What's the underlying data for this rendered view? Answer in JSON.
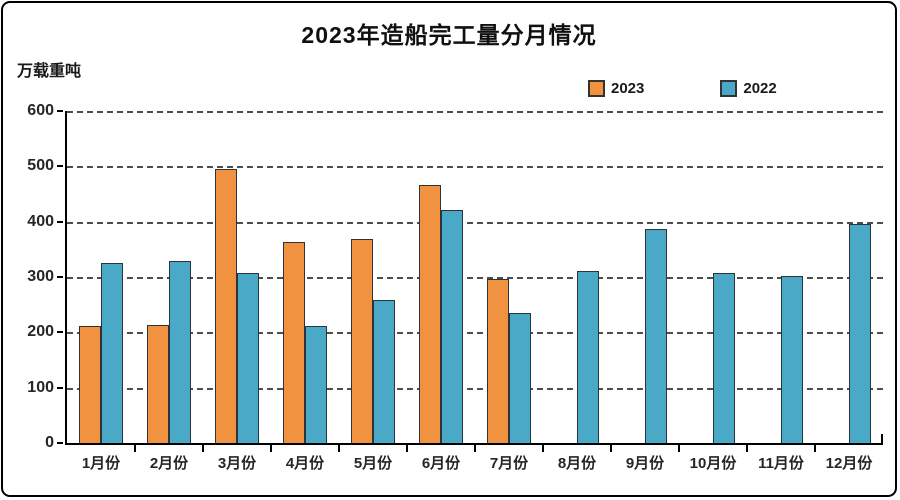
{
  "chart_data": {
    "type": "bar",
    "title": "2023年造船完工量分月情况",
    "ylabel": "万载重吨",
    "xlabel": "",
    "ylim": [
      0,
      600
    ],
    "yticks": [
      0,
      100,
      200,
      300,
      400,
      500,
      600
    ],
    "grid": "horizontal-dashed",
    "legend_position": "top-right",
    "categories": [
      "1月份",
      "2月份",
      "3月份",
      "4月份",
      "5月份",
      "6月份",
      "7月份",
      "8月份",
      "9月份",
      "10月份",
      "11月份",
      "12月份"
    ],
    "series": [
      {
        "name": "2023",
        "color": "#F0923F",
        "values": [
          211,
          214,
          495,
          363,
          368,
          467,
          296,
          null,
          null,
          null,
          null,
          null
        ]
      },
      {
        "name": "2022",
        "color": "#4AA9C7",
        "values": [
          326,
          329,
          307,
          211,
          258,
          421,
          235,
          310,
          387,
          307,
          302,
          396
        ]
      }
    ]
  },
  "colors": {
    "bar_border": "#2c333a",
    "gridline": "#4d4d4d",
    "axis": "#000000",
    "text": "#1a1a1a"
  }
}
